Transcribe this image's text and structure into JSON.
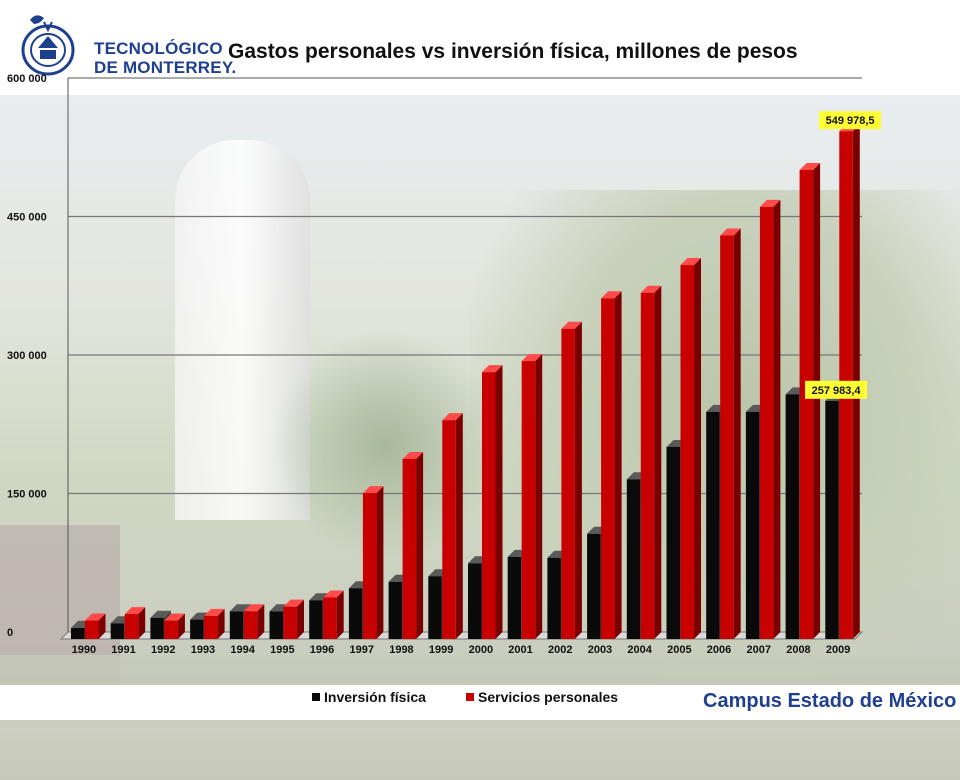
{
  "header": {
    "logo_line1": "TECNOLÓGICO",
    "logo_line2": "DE MONTERREY."
  },
  "footer": {
    "campus": "Campus Estado de México"
  },
  "colors": {
    "series_inversion": "#0a0a0a",
    "series_servicios": "#c80000",
    "label_bg": "#ffff33",
    "logo_blue": "#1f3f8f"
  },
  "chart_data": {
    "type": "bar",
    "title": "Gastos personales vs inversión física, millones de pesos",
    "categories": [
      "1990",
      "1991",
      "1992",
      "1993",
      "1994",
      "1995",
      "1996",
      "1997",
      "1998",
      "1999",
      "2000",
      "2001",
      "2002",
      "2003",
      "2004",
      "2005",
      "2006",
      "2007",
      "2008",
      "2009"
    ],
    "series": [
      {
        "name": "Inversión física",
        "values": [
          12000,
          17000,
          23000,
          21000,
          30000,
          30000,
          42000,
          55000,
          62000,
          68000,
          82000,
          89000,
          88000,
          114000,
          173000,
          208000,
          246000,
          246000,
          265000,
          257983.4
        ]
      },
      {
        "name": "Servicios personales",
        "values": [
          20000,
          27000,
          20000,
          25000,
          30000,
          35000,
          45000,
          158000,
          195000,
          237000,
          289000,
          301000,
          336000,
          369000,
          375000,
          405000,
          437000,
          468000,
          508000,
          549978.5
        ]
      }
    ],
    "data_labels": [
      {
        "series": 1,
        "index": 19,
        "text": "549 978,5"
      },
      {
        "series": 0,
        "index": 19,
        "text": "257 983,4"
      }
    ],
    "yticks": [
      "0",
      "150 000",
      "300 000",
      "450 000",
      "600 000"
    ],
    "ytick_values": [
      0,
      150000,
      300000,
      450000,
      600000
    ],
    "ylim": [
      0,
      600000
    ],
    "xlabel": "",
    "ylabel": "",
    "grid": true,
    "legend": "bottom-center"
  }
}
